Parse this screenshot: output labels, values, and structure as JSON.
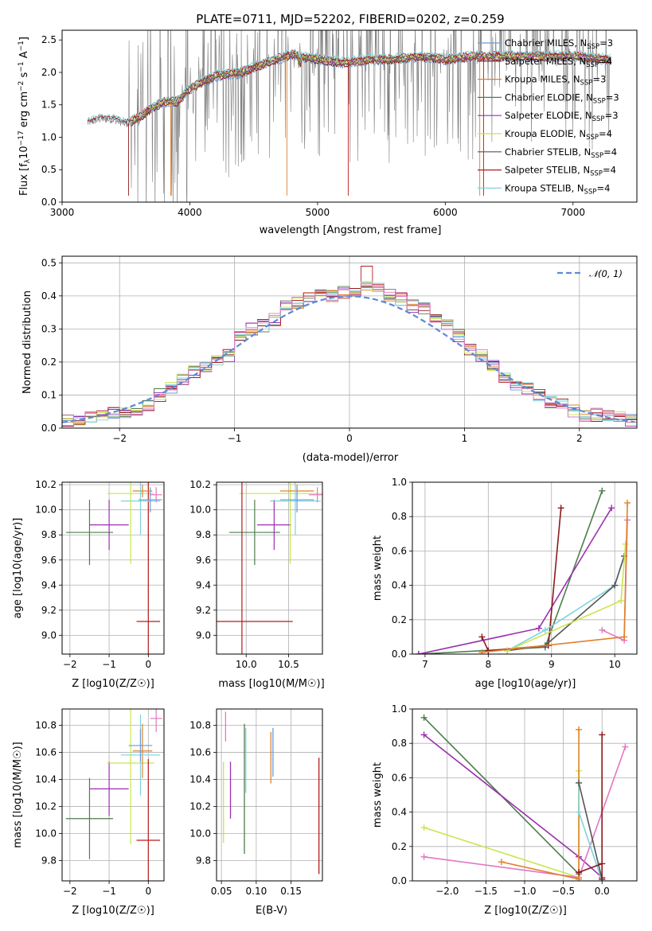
{
  "figure": {
    "title": "PLATE=0711, MJD=52202, FIBERID=0202, z=0.259"
  },
  "colors": {
    "Chabrier MILES": "#6a9bd8",
    "Salpeter MILES": "#8b1a1a",
    "Kroupa MILES": "#e0812b",
    "Chabrier ELODIE": "#4f7c4f",
    "Salpeter ELODIE": "#9b2fb0",
    "Kroupa ELODIE": "#c8e64a",
    "Chabrier STELIB": "#555555",
    "Salpeter STELIB": "#b51d1d",
    "Kroupa STELIB": "#7fd3dc",
    "obs": "#808080",
    "gauss": "#5b8ad6",
    "pink": "#e377c2"
  },
  "chart_data": [
    {
      "type": "line",
      "name": "spectrum",
      "xlabel": "wavelength [Angstrom, rest frame]",
      "ylabel": "Flux [f_λ 10^-17 erg cm^-2 s^-1 A^-1]",
      "xlim": [
        3000,
        7500
      ],
      "ylim": [
        0,
        2.65
      ],
      "xticks": [
        "3000",
        "4000",
        "5000",
        "6000",
        "7000"
      ],
      "yticks": [
        "0.0",
        "0.5",
        "1.0",
        "1.5",
        "2.0",
        "2.5"
      ],
      "grid": false,
      "legend_position": "top-right",
      "legend": [
        {
          "model": "Chabrier MILES",
          "nssp": "3"
        },
        {
          "model": "Salpeter MILES",
          "nssp": "4"
        },
        {
          "model": "Kroupa MILES",
          "nssp": "3"
        },
        {
          "model": "Chabrier ELODIE",
          "nssp": "3"
        },
        {
          "model": "Salpeter ELODIE",
          "nssp": "3"
        },
        {
          "model": "Kroupa ELODIE",
          "nssp": "4"
        },
        {
          "model": "Chabrier STELIB",
          "nssp": "4"
        },
        {
          "model": "Salpeter STELIB",
          "nssp": "4"
        },
        {
          "model": "Kroupa STELIB",
          "nssp": "4"
        }
      ],
      "continuum": [
        [
          3200,
          1.22
        ],
        [
          3300,
          1.28
        ],
        [
          3400,
          1.27
        ],
        [
          3500,
          1.2
        ],
        [
          3600,
          1.3
        ],
        [
          3700,
          1.45
        ],
        [
          3800,
          1.55
        ],
        [
          3900,
          1.55
        ],
        [
          4000,
          1.75
        ],
        [
          4200,
          1.95
        ],
        [
          4400,
          2.0
        ],
        [
          4600,
          2.15
        ],
        [
          4800,
          2.28
        ],
        [
          5000,
          2.2
        ],
        [
          5200,
          2.15
        ],
        [
          5400,
          2.2
        ],
        [
          5600,
          2.2
        ],
        [
          5800,
          2.25
        ],
        [
          6000,
          2.2
        ],
        [
          6200,
          2.25
        ],
        [
          6400,
          2.25
        ],
        [
          6600,
          2.25
        ],
        [
          6800,
          2.25
        ],
        [
          7000,
          2.25
        ],
        [
          7300,
          2.2
        ]
      ]
    },
    {
      "type": "line",
      "name": "residuals",
      "xlabel": "(data-model)/error",
      "ylabel": "Normed distribution",
      "xlim": [
        -2.5,
        2.5
      ],
      "ylim": [
        0,
        0.52
      ],
      "xticks": [
        "−2",
        "−1",
        "0",
        "1",
        "2"
      ],
      "yticks": [
        "0.0",
        "0.1",
        "0.2",
        "0.3",
        "0.4",
        "0.5"
      ],
      "grid": true,
      "legend_label": "𝒩(0, 1)",
      "legend_position": "top-right",
      "bins": [
        -2.5,
        -2.4,
        -2.3,
        -2.2,
        -2.1,
        -2.0,
        -1.9,
        -1.8,
        -1.7,
        -1.6,
        -1.5,
        -1.4,
        -1.3,
        -1.2,
        -1.1,
        -1.0,
        -0.9,
        -0.8,
        -0.7,
        -0.6,
        -0.5,
        -0.4,
        -0.3,
        -0.2,
        -0.1,
        0.0,
        0.1,
        0.2,
        0.3,
        0.4,
        0.5,
        0.6,
        0.7,
        0.8,
        0.9,
        1.0,
        1.1,
        1.2,
        1.3,
        1.4,
        1.5,
        1.6,
        1.7,
        1.8,
        1.9,
        2.0,
        2.1,
        2.2,
        2.3,
        2.4,
        2.5
      ],
      "hist_base": [
        0.02,
        0.025,
        0.03,
        0.04,
        0.045,
        0.05,
        0.05,
        0.07,
        0.1,
        0.12,
        0.15,
        0.17,
        0.18,
        0.2,
        0.22,
        0.28,
        0.3,
        0.31,
        0.33,
        0.37,
        0.38,
        0.39,
        0.41,
        0.4,
        0.41,
        0.41,
        0.43,
        0.42,
        0.4,
        0.39,
        0.37,
        0.36,
        0.33,
        0.31,
        0.28,
        0.24,
        0.22,
        0.19,
        0.15,
        0.13,
        0.12,
        0.1,
        0.08,
        0.07,
        0.05,
        0.04,
        0.04,
        0.035,
        0.03,
        0.025
      ]
    },
    {
      "type": "scatter",
      "name": "age-vs-Z",
      "xlabel": "Z [log10(Z/Z☉)]",
      "ylabel": "age  [log10(age/yr)]",
      "xlim": [
        -2.2,
        0.4
      ],
      "ylim": [
        8.85,
        10.22
      ],
      "xticks": [
        "−2",
        "−1",
        "0"
      ],
      "yticks": [
        "9.0",
        "9.2",
        "9.4",
        "9.6",
        "9.8",
        "10.0",
        "10.2"
      ],
      "grid": true,
      "crosses": [
        {
          "series": "Chabrier ELODIE",
          "x": -1.5,
          "xerr": 0.6,
          "y": 9.82,
          "yerr": 0.26
        },
        {
          "series": "Salpeter ELODIE",
          "x": -1.0,
          "xerr": 0.5,
          "y": 9.88,
          "yerr": 0.2
        },
        {
          "series": "Kroupa ELODIE",
          "x": -0.45,
          "xerr": 0.6,
          "y": 10.13,
          "yerr": 0.56
        },
        {
          "series": "Salpeter STELIB",
          "x": 0.0,
          "xerr": 0.3,
          "y": 9.11,
          "yerr": 1.2
        },
        {
          "series": "Kroupa MILES",
          "x": -0.15,
          "xerr": 0.25,
          "y": 10.15,
          "yerr": 0.05
        },
        {
          "series": "Kroupa STELIB",
          "x": -0.2,
          "xerr": 0.5,
          "y": 10.07,
          "yerr": 0.27
        },
        {
          "series": "Chabrier MILES",
          "x": 0.05,
          "xerr": 0.3,
          "y": 10.08,
          "yerr": 0.1
        },
        {
          "series": "pink",
          "x": 0.2,
          "xerr": 0.15,
          "y": 10.12,
          "yerr": 0.06
        }
      ]
    },
    {
      "type": "scatter",
      "name": "age-vs-mass",
      "xlabel": "mass [log10(M/M☉)]",
      "ylabel": "",
      "xlim": [
        9.65,
        10.9
      ],
      "ylim": [
        8.85,
        10.22
      ],
      "xticks": [
        "10.0",
        "10.5"
      ],
      "yticks": [
        "9.0",
        "9.2",
        "9.4",
        "9.6",
        "9.8",
        "10.0",
        "10.2"
      ],
      "grid": true,
      "crosses": [
        {
          "series": "Chabrier ELODIE",
          "x": 10.1,
          "xerr": 0.3,
          "y": 9.82,
          "yerr": 0.26
        },
        {
          "series": "Salpeter ELODIE",
          "x": 10.33,
          "xerr": 0.2,
          "y": 9.88,
          "yerr": 0.2
        },
        {
          "series": "Kroupa ELODIE",
          "x": 10.52,
          "xerr": 0.6,
          "y": 10.13,
          "yerr": 0.56
        },
        {
          "series": "Salpeter STELIB",
          "x": 9.95,
          "xerr": 0.6,
          "y": 9.11,
          "yerr": 1.2
        },
        {
          "series": "Kroupa MILES",
          "x": 10.6,
          "xerr": 0.2,
          "y": 10.15,
          "yerr": 0.05
        },
        {
          "series": "Kroupa STELIB",
          "x": 10.58,
          "xerr": 0.3,
          "y": 10.07,
          "yerr": 0.27
        },
        {
          "series": "Chabrier MILES",
          "x": 10.6,
          "xerr": 0.2,
          "y": 10.08,
          "yerr": 0.1
        },
        {
          "series": "pink",
          "x": 10.84,
          "xerr": 0.1,
          "y": 10.12,
          "yerr": 0.06
        }
      ]
    },
    {
      "type": "line",
      "name": "mass-weight-vs-age",
      "xlabel": "age  [log10(age/yr)]",
      "ylabel": "mass weight",
      "xlim": [
        6.8,
        10.35
      ],
      "ylim": [
        0,
        1.0
      ],
      "xticks": [
        "7",
        "8",
        "9",
        "10"
      ],
      "yticks": [
        "0.0",
        "0.2",
        "0.4",
        "0.6",
        "0.8",
        "1.0"
      ],
      "grid": true,
      "series": [
        {
          "name": "Chabrier ELODIE",
          "points": [
            [
              6.9,
              0.0
            ],
            [
              8.9,
              0.04
            ],
            [
              9.8,
              0.95
            ]
          ]
        },
        {
          "name": "Salpeter ELODIE",
          "points": [
            [
              6.9,
              0.0
            ],
            [
              8.8,
              0.15
            ],
            [
              9.95,
              0.85
            ]
          ]
        },
        {
          "name": "Salpeter MILES",
          "points": [
            [
              7.9,
              0.1
            ],
            [
              8.0,
              0.02
            ],
            [
              8.95,
              0.05
            ],
            [
              9.15,
              0.85
            ]
          ]
        },
        {
          "name": "Kroupa STELIB",
          "points": [
            [
              8.3,
              0.02
            ],
            [
              8.9,
              0.14
            ],
            [
              10.0,
              0.4
            ],
            [
              10.15,
              0.57
            ]
          ]
        },
        {
          "name": "Chabrier STELIB",
          "points": [
            [
              8.3,
              0.02
            ],
            [
              8.9,
              0.05
            ],
            [
              10.0,
              0.4
            ],
            [
              10.15,
              0.57
            ]
          ]
        },
        {
          "name": "Kroupa ELODIE",
          "points": [
            [
              8.3,
              0.02
            ],
            [
              10.1,
              0.31
            ],
            [
              10.17,
              0.64
            ]
          ]
        },
        {
          "name": "pink",
          "points": [
            [
              9.8,
              0.14
            ],
            [
              10.15,
              0.08
            ],
            [
              10.2,
              0.78
            ]
          ]
        },
        {
          "name": "Kroupa MILES",
          "points": [
            [
              7.9,
              0.01
            ],
            [
              10.15,
              0.1
            ],
            [
              10.2,
              0.88
            ]
          ]
        }
      ]
    },
    {
      "type": "scatter",
      "name": "mass-vs-Z",
      "xlabel": "Z [log10(Z/Z☉)]",
      "ylabel": "mass [log10(M/M☉)]",
      "xlim": [
        -2.2,
        0.4
      ],
      "ylim": [
        9.65,
        10.92
      ],
      "xticks": [
        "−2",
        "−1",
        "0"
      ],
      "yticks": [
        "9.8",
        "10.0",
        "10.2",
        "10.4",
        "10.6",
        "10.8"
      ],
      "grid": true,
      "crosses": [
        {
          "series": "Chabrier ELODIE",
          "x": -1.5,
          "xerr": 0.6,
          "y": 10.11,
          "yerr": 0.3
        },
        {
          "series": "Salpeter ELODIE",
          "x": -1.0,
          "xerr": 0.5,
          "y": 10.33,
          "yerr": 0.2
        },
        {
          "series": "Kroupa ELODIE",
          "x": -0.45,
          "xerr": 0.6,
          "y": 10.52,
          "yerr": 0.6
        },
        {
          "series": "Salpeter STELIB",
          "x": 0.0,
          "xerr": 0.3,
          "y": 9.95,
          "yerr": 0.6
        },
        {
          "series": "Kroupa MILES",
          "x": -0.15,
          "xerr": 0.25,
          "y": 10.61,
          "yerr": 0.2
        },
        {
          "series": "Kroupa STELIB",
          "x": -0.2,
          "xerr": 0.5,
          "y": 10.58,
          "yerr": 0.3
        },
        {
          "series": "Chabrier MILES",
          "x": -0.2,
          "xerr": 0.3,
          "y": 10.65,
          "yerr": 0.12
        },
        {
          "series": "pink",
          "x": 0.2,
          "xerr": 0.15,
          "y": 10.85,
          "yerr": 0.1
        }
      ]
    },
    {
      "type": "scatter",
      "name": "mass-vs-ebv",
      "xlabel": "E(B-V)",
      "ylabel": "",
      "xlim": [
        0.043,
        0.195
      ],
      "ylim": [
        9.65,
        10.92
      ],
      "xticks": [
        "0.05",
        "0.10",
        "0.15"
      ],
      "yticks": [
        "9.8",
        "10.0",
        "10.2",
        "10.4",
        "10.6",
        "10.8"
      ],
      "grid": true,
      "bars": [
        {
          "series": "Kroupa ELODIE",
          "x": 0.053,
          "lo": 9.93,
          "hi": 10.53
        },
        {
          "series": "pink",
          "x": 0.056,
          "lo": 10.68,
          "hi": 10.9
        },
        {
          "series": "Salpeter ELODIE",
          "x": 0.063,
          "lo": 10.11,
          "hi": 10.53
        },
        {
          "series": "Chabrier ELODIE",
          "x": 0.083,
          "lo": 9.85,
          "hi": 10.81
        },
        {
          "series": "Kroupa STELIB",
          "x": 0.085,
          "lo": 10.3,
          "hi": 10.78
        },
        {
          "series": "Kroupa MILES",
          "x": 0.121,
          "lo": 10.37,
          "hi": 10.75
        },
        {
          "series": "Chabrier MILES",
          "x": 0.124,
          "lo": 10.42,
          "hi": 10.78
        },
        {
          "series": "Salpeter STELIB",
          "x": 0.19,
          "lo": 9.7,
          "hi": 10.56
        }
      ]
    },
    {
      "type": "line",
      "name": "mass-weight-vs-Z",
      "xlabel": "Z [log10(Z/Z☉)]",
      "ylabel": "mass weight",
      "xlim": [
        -2.45,
        0.45
      ],
      "ylim": [
        0,
        1.0
      ],
      "xticks": [
        "−2.0",
        "−1.5",
        "−1.0",
        "−0.5",
        "0.0"
      ],
      "yticks": [
        "0.0",
        "0.2",
        "0.4",
        "0.6",
        "0.8",
        "1.0"
      ],
      "grid": true,
      "series": [
        {
          "name": "Chabrier ELODIE",
          "points": [
            [
              -2.3,
              0.95
            ],
            [
              -0.3,
              0.04
            ]
          ]
        },
        {
          "name": "Salpeter ELODIE",
          "points": [
            [
              -2.3,
              0.85
            ],
            [
              -0.3,
              0.14
            ],
            [
              0.0,
              0.02
            ]
          ]
        },
        {
          "name": "Kroupa ELODIE",
          "points": [
            [
              -2.3,
              0.31
            ],
            [
              -0.3,
              0.02
            ],
            [
              -0.3,
              0.64
            ]
          ]
        },
        {
          "name": "pink",
          "points": [
            [
              -2.3,
              0.14
            ],
            [
              -0.3,
              0.02
            ],
            [
              0.3,
              0.78
            ]
          ]
        },
        {
          "name": "Kroupa MILES",
          "points": [
            [
              -1.3,
              0.11
            ],
            [
              -0.3,
              0.01
            ],
            [
              -0.3,
              0.88
            ]
          ]
        },
        {
          "name": "Kroupa STELIB",
          "points": [
            [
              -0.3,
              0.57
            ],
            [
              -0.3,
              0.4
            ],
            [
              0.0,
              0.0
            ]
          ]
        },
        {
          "name": "Chabrier STELIB",
          "points": [
            [
              -0.3,
              0.57
            ],
            [
              0.0,
              0.01
            ]
          ]
        },
        {
          "name": "Salpeter MILES",
          "points": [
            [
              -0.3,
              0.05
            ],
            [
              0.0,
              0.1
            ],
            [
              0.0,
              0.85
            ],
            [
              0.0,
              0.01
            ]
          ]
        }
      ]
    }
  ]
}
